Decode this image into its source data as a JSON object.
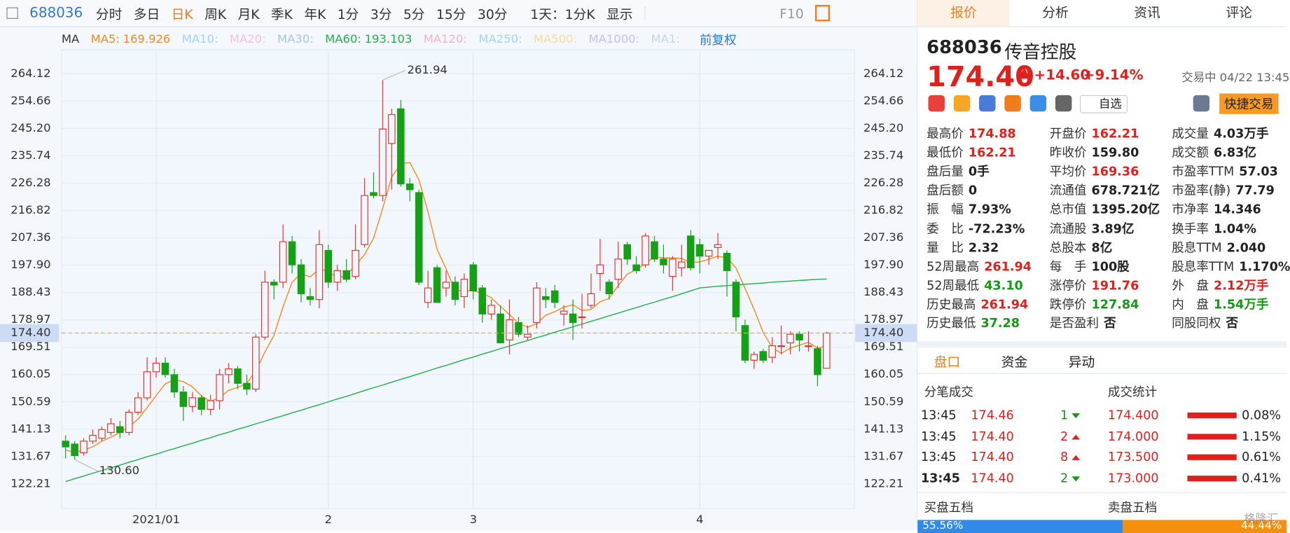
{
  "toolbar": {
    "code": "688036",
    "periods": [
      "分时",
      "多日",
      "日K",
      "周K",
      "月K",
      "季K",
      "年K",
      "1分",
      "3分",
      "5分",
      "15分",
      "30分"
    ],
    "active": "日K",
    "interval": "1天：1分K",
    "display": "显示",
    "f10": "F10"
  },
  "ma_bar": {
    "title": "MA",
    "inactive": [
      {
        "name": "MA10:",
        "color": "#9fd3f0"
      },
      {
        "name": "MA20:",
        "color": "#f2bfe0"
      },
      {
        "name": "MA30:",
        "color": "#a9c4ea"
      },
      {
        "name": "MA120:",
        "color": "#f2b3c6"
      },
      {
        "name": "MA250:",
        "color": "#9ed6f7"
      },
      {
        "name": "MA500:",
        "color": "#f5dc9a"
      },
      {
        "name": "MA1000:",
        "color": "#c6bdf0"
      },
      {
        "name": "MA1:",
        "color": "#c4d6e8"
      }
    ],
    "adjust": "前复权"
  },
  "chart_data": {
    "type": "candlestick",
    "categories": [
      null,
      null,
      null,
      null,
      null,
      null,
      null,
      null,
      null,
      null,
      "2021/01",
      null,
      null,
      null,
      null,
      null,
      null,
      null,
      null,
      null,
      null,
      null,
      null,
      null,
      null,
      null,
      null,
      null,
      null,
      "2",
      null,
      null,
      null,
      null,
      null,
      null,
      null,
      null,
      null,
      null,
      null,
      null,
      null,
      null,
      null,
      "3",
      null,
      null,
      null,
      null,
      null,
      null,
      null,
      null,
      null,
      null,
      null,
      null,
      null,
      null,
      null,
      null,
      null,
      null,
      null,
      null,
      null,
      null,
      null,
      null,
      "4",
      null,
      null,
      null,
      null,
      null,
      null,
      null,
      null,
      null,
      null,
      null,
      null,
      null,
      null
    ],
    "open": [
      137,
      136,
      133,
      137,
      138,
      140,
      142,
      140,
      147,
      152,
      161,
      164,
      160,
      154,
      149,
      152,
      148,
      151,
      160,
      162,
      157,
      155,
      173,
      192,
      192,
      206,
      198,
      187,
      186,
      203,
      192,
      196,
      194,
      205,
      223,
      222,
      240,
      252,
      226,
      223,
      185,
      197,
      190,
      192,
      187,
      198,
      190,
      181,
      181,
      172,
      178,
      173,
      178,
      187,
      189,
      181,
      181,
      180,
      184,
      195,
      192,
      193,
      205,
      198,
      198,
      206,
      200,
      194,
      197,
      208,
      205,
      201,
      204,
      202,
      192,
      177,
      165,
      168,
      166,
      170,
      171,
      174,
      170,
      169,
      162.21
    ],
    "high": [
      139,
      137,
      138,
      141,
      142,
      145,
      144,
      148,
      154,
      166,
      166,
      166,
      162,
      156,
      154,
      153,
      153,
      162,
      164,
      163,
      160,
      174,
      196,
      193,
      212,
      208,
      200,
      190,
      210,
      205,
      198,
      200,
      212,
      228,
      230,
      261.94,
      252,
      255,
      228,
      224,
      196,
      198,
      196,
      194,
      195,
      199,
      191,
      186,
      184,
      186,
      180,
      177,
      192,
      190,
      191,
      184,
      186,
      188,
      195,
      207,
      193,
      206,
      206,
      201,
      209,
      208,
      205,
      201,
      205,
      210,
      207,
      203,
      209,
      203,
      193,
      179,
      168,
      169,
      173,
      177,
      175,
      175,
      175,
      170,
      174.88
    ],
    "low": [
      131,
      130.6,
      132,
      136,
      137,
      139,
      138,
      139,
      146,
      151,
      159,
      159,
      152,
      144,
      147,
      146,
      146,
      148,
      157,
      155,
      153,
      154,
      172,
      186,
      190,
      195,
      185,
      184,
      183,
      190,
      189,
      192,
      193,
      204,
      221,
      220,
      224,
      225,
      220,
      191,
      183,
      185,
      187,
      184,
      183,
      186,
      178,
      179,
      171,
      167,
      173,
      172,
      176,
      183,
      183,
      177,
      172,
      176,
      183,
      189,
      186,
      190,
      198,
      195,
      197,
      199,
      195,
      189,
      194,
      196,
      195,
      198,
      200,
      187,
      175,
      164,
      162,
      164,
      164,
      167,
      167,
      168,
      168,
      156,
      162.21
    ],
    "close": [
      135,
      132,
      137,
      139,
      141,
      143,
      140,
      147,
      152,
      161,
      164,
      160,
      154,
      149,
      152,
      148,
      151,
      160,
      162,
      157,
      155,
      173,
      192,
      191,
      206,
      198,
      188,
      186,
      205,
      192,
      196,
      193,
      203,
      222,
      222,
      245,
      250,
      226,
      224,
      192,
      190,
      185,
      192,
      186,
      193,
      189,
      181,
      184,
      171,
      179,
      174,
      174,
      190,
      186,
      185,
      182,
      178,
      180,
      188,
      198,
      188,
      200,
      200,
      196,
      208,
      200,
      198,
      200,
      199,
      197,
      201,
      203,
      205,
      196,
      180,
      165,
      167,
      165,
      170,
      170,
      174,
      172,
      170,
      160,
      174.4
    ],
    "up_color": "#e8312b",
    "down_color": "#16a016",
    "series": [
      {
        "name": "MA5:",
        "color": "#f5891f",
        "values": [
          134,
          133,
          134,
          135,
          137,
          138.4,
          140,
          142,
          144.6,
          148.6,
          152.8,
          156.8,
          158.2,
          157.6,
          155.8,
          152.6,
          150.8,
          152,
          154.6,
          155.6,
          157,
          161.4,
          167.8,
          173.6,
          183.4,
          192,
          195,
          193.8,
          196.6,
          195.8,
          193.4,
          194.4,
          197.8,
          201.6,
          207.2,
          217.6,
          228.4,
          233,
          233.4,
          227.4,
          216.4,
          203.4,
          196.6,
          189,
          189.2,
          189,
          188.2,
          186.6,
          183.6,
          180.8,
          177.8,
          176.4,
          177.6,
          180.6,
          181.8,
          183.4,
          184.2,
          182.2,
          182.6,
          185.2,
          186.4,
          190.8,
          194.8,
          196.4,
          198.4,
          200.8,
          200.4,
          200.4,
          200.2,
          198.8,
          199,
          200,
          201,
          200.4,
          197,
          189.8,
          182.6,
          174.6,
          169.4,
          167.4,
          169.2,
          170.2,
          171.2,
          169.2,
          169.926
        ]
      },
      {
        "name": "MA60:",
        "color": "#1fb04a",
        "values": [
          123.0,
          124.0,
          124.9,
          125.9,
          126.8,
          127.8,
          128.7,
          129.7,
          130.6,
          131.6,
          132.5,
          133.5,
          134.4,
          135.4,
          136.3,
          137.3,
          138.2,
          139.2,
          140.1,
          141.1,
          142.0,
          143.0,
          143.9,
          144.9,
          145.8,
          146.8,
          147.7,
          148.7,
          149.6,
          150.6,
          151.6,
          152.5,
          153.5,
          154.5,
          155.5,
          156.4,
          157.4,
          158.4,
          159.3,
          160.3,
          161.3,
          162.3,
          163.2,
          164.2,
          165.2,
          166.1,
          167.1,
          168.0,
          169.0,
          169.9,
          170.9,
          171.8,
          172.8,
          173.7,
          174.7,
          175.6,
          176.6,
          177.5,
          178.5,
          179.4,
          180.4,
          181.3,
          182.3,
          183.2,
          184.2,
          185.1,
          186.1,
          187.0,
          188.0,
          189.0,
          190.0,
          190.3,
          190.6,
          190.8,
          191.0,
          191.3,
          191.5,
          191.7,
          192.0,
          192.2,
          192.4,
          192.6,
          192.8,
          193.0,
          193.103
        ]
      }
    ],
    "ylim": [
      113.7,
      271.2
    ],
    "yticks": [
      264.12,
      254.66,
      {
        "value": 245.2,
        "label": "245.20"
      },
      235.74,
      226.28,
      216.82,
      207.36,
      {
        "value": 197.9,
        "label": "197.90"
      },
      188.43,
      178.97,
      169.51,
      160.05,
      150.59,
      141.13,
      131.67,
      122.21
    ],
    "grid": true,
    "current_price": {
      "value": 174.4,
      "label": "174.40"
    },
    "annotations": [
      {
        "value": 261.94,
        "label": "261.94",
        "field": "high"
      },
      {
        "value": 130.6,
        "label": "130.60",
        "field": "low"
      }
    ]
  },
  "panel": {
    "tabs": [
      "报价",
      "分析",
      "资讯",
      "评论"
    ],
    "code": "688036",
    "name": "传音控股",
    "price": "174.40",
    "change": "+14.60",
    "pct": "+9.14%",
    "status": "交易中 04/22 13:45",
    "watch": "自选",
    "trade": "快捷交易",
    "quote": [
      [
        {
          "label": "最高价",
          "value": "174.88",
          "tone": "up"
        },
        {
          "label": "最低价",
          "value": "162.21",
          "tone": "up"
        },
        {
          "label": "盘后量",
          "value": "0手",
          "tone": "flat"
        },
        {
          "label": "盘后额",
          "value": "0",
          "tone": "flat"
        },
        {
          "label": "振　幅",
          "value": "7.93%",
          "tone": "flat"
        },
        {
          "label": "委　比",
          "value": "-72.23%",
          "tone": "flat"
        },
        {
          "label": "量　比",
          "value": "2.32",
          "tone": "flat"
        },
        {
          "label": "52周最高",
          "value": "261.94",
          "tone": "up"
        },
        {
          "label": "52周最低",
          "value": "43.10",
          "tone": "down"
        },
        {
          "label": "历史最高",
          "value": "261.94",
          "tone": "up"
        },
        {
          "label": "历史最低",
          "value": "37.28",
          "tone": "down"
        }
      ],
      [
        {
          "label": "开盘价",
          "value": "162.21",
          "tone": "up"
        },
        {
          "label": "昨收价",
          "value": "159.80",
          "tone": "flat"
        },
        {
          "label": "平均价",
          "value": "169.36",
          "tone": "up"
        },
        {
          "label": "流通值",
          "value": "678.721亿",
          "tone": "flat"
        },
        {
          "label": "总市值",
          "value": "1395.20亿",
          "tone": "flat"
        },
        {
          "label": "流通股",
          "value": "3.89亿",
          "tone": "flat"
        },
        {
          "label": "总股本",
          "value": "8亿",
          "tone": "flat"
        },
        {
          "label": "每　手",
          "value": "100股",
          "tone": "flat"
        },
        {
          "label": "涨停价",
          "value": "191.76",
          "tone": "up"
        },
        {
          "label": "跌停价",
          "value": "127.84",
          "tone": "down"
        },
        {
          "label": "是否盈利",
          "value": "否",
          "tone": "flat"
        }
      ],
      [
        {
          "label": "成交量",
          "value": "4.03万手",
          "tone": "flat"
        },
        {
          "label": "成交额",
          "value": "6.83亿",
          "tone": "flat"
        },
        {
          "label": "市盈率TTM",
          "value": "57.03",
          "tone": "flat"
        },
        {
          "label": "市盈率(静)",
          "value": "77.79",
          "tone": "flat"
        },
        {
          "label": "市净率",
          "value": "14.346",
          "tone": "flat"
        },
        {
          "label": "换手率",
          "value": "1.04%",
          "tone": "flat"
        },
        {
          "label": "股息TTM",
          "value": "2.040",
          "tone": "flat"
        },
        {
          "label": "股息率TTM",
          "value": "1.170%",
          "tone": "flat"
        },
        {
          "label": "外　盘",
          "value": "2.12万手",
          "tone": "up"
        },
        {
          "label": "内　盘",
          "value": "1.54万手",
          "tone": "down"
        },
        {
          "label": "同股同权",
          "value": "否",
          "tone": "flat"
        }
      ]
    ],
    "subtabs": [
      "盘口",
      "资金",
      "异动"
    ],
    "ticks_title": "分笔成交",
    "stats_title": "成交统计",
    "trades": [
      {
        "time": "13:45",
        "price": "174.46",
        "count": "1",
        "side": "down"
      },
      {
        "time": "13:45",
        "price": "174.40",
        "count": "2",
        "side": "up"
      },
      {
        "time": "13:45",
        "price": "174.40",
        "count": "8",
        "side": "up"
      },
      {
        "time": "13:45",
        "price": "174.40",
        "count": "2",
        "side": "down"
      }
    ],
    "stats": [
      {
        "price": "174.400",
        "pct": "0.08%"
      },
      {
        "price": "174.000",
        "pct": "1.15%"
      },
      {
        "price": "173.500",
        "pct": "0.61%"
      },
      {
        "price": "173.000",
        "pct": "0.41%"
      }
    ],
    "buy_title": "买盘五档",
    "sell_title": "卖盘五档",
    "buy": {
      "value": 55.56,
      "label": "55.56%"
    },
    "sell": {
      "value": 44.44,
      "label": "44.44%"
    },
    "watermark": "格隆汇"
  }
}
